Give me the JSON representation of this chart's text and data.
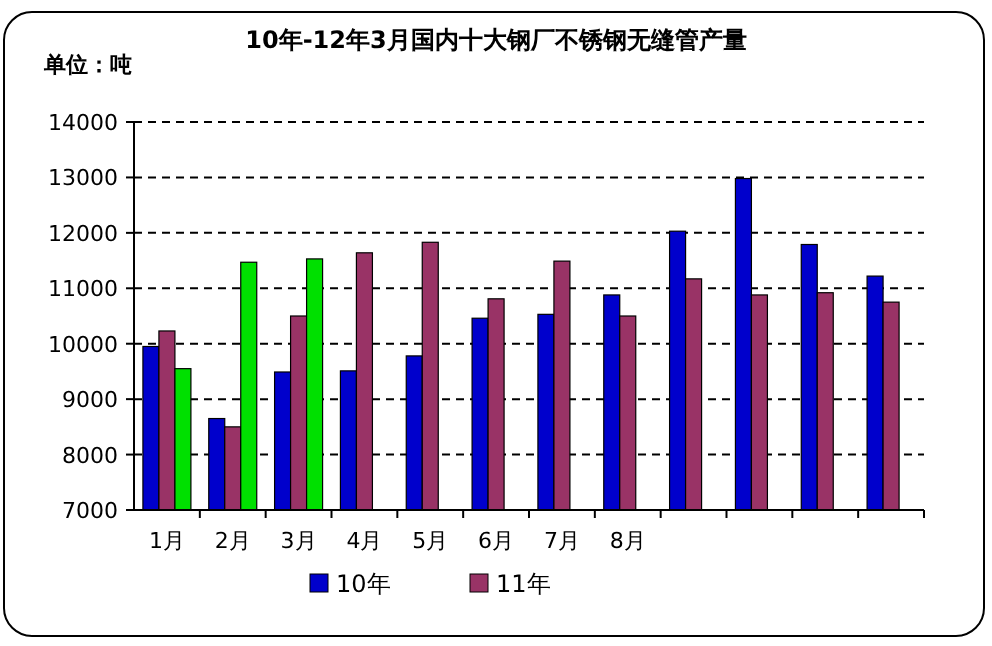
{
  "chart_data": {
    "type": "bar",
    "title": "10年-12年3月国内十大钢厂不锈钢无缝管产量",
    "ylabel": "单位：吨",
    "categories": [
      "1月",
      "2月",
      "3月",
      "4月",
      "5月",
      "6月",
      "7月",
      "8月",
      null,
      null,
      null,
      null
    ],
    "series": [
      {
        "name": "10年",
        "color": "#0000cc",
        "values": [
          9950,
          8650,
          9490,
          9510,
          9780,
          10460,
          10530,
          10880,
          12030,
          12980,
          11790,
          11220
        ]
      },
      {
        "name": "11年",
        "color": "#993366",
        "values": [
          10230,
          8500,
          10500,
          11640,
          11830,
          10810,
          11490,
          10500,
          11170,
          10880,
          10920,
          10750
        ]
      },
      {
        "color": "#00e000",
        "values": [
          9550,
          11470,
          11530,
          null,
          null,
          null,
          null,
          null,
          null,
          null,
          null,
          null
        ]
      }
    ],
    "ylim": [
      7000,
      14000
    ],
    "yticks": [
      7000,
      8000,
      9000,
      10000,
      11000,
      12000,
      13000,
      14000
    ],
    "grid": "y",
    "legend": "bottom"
  }
}
